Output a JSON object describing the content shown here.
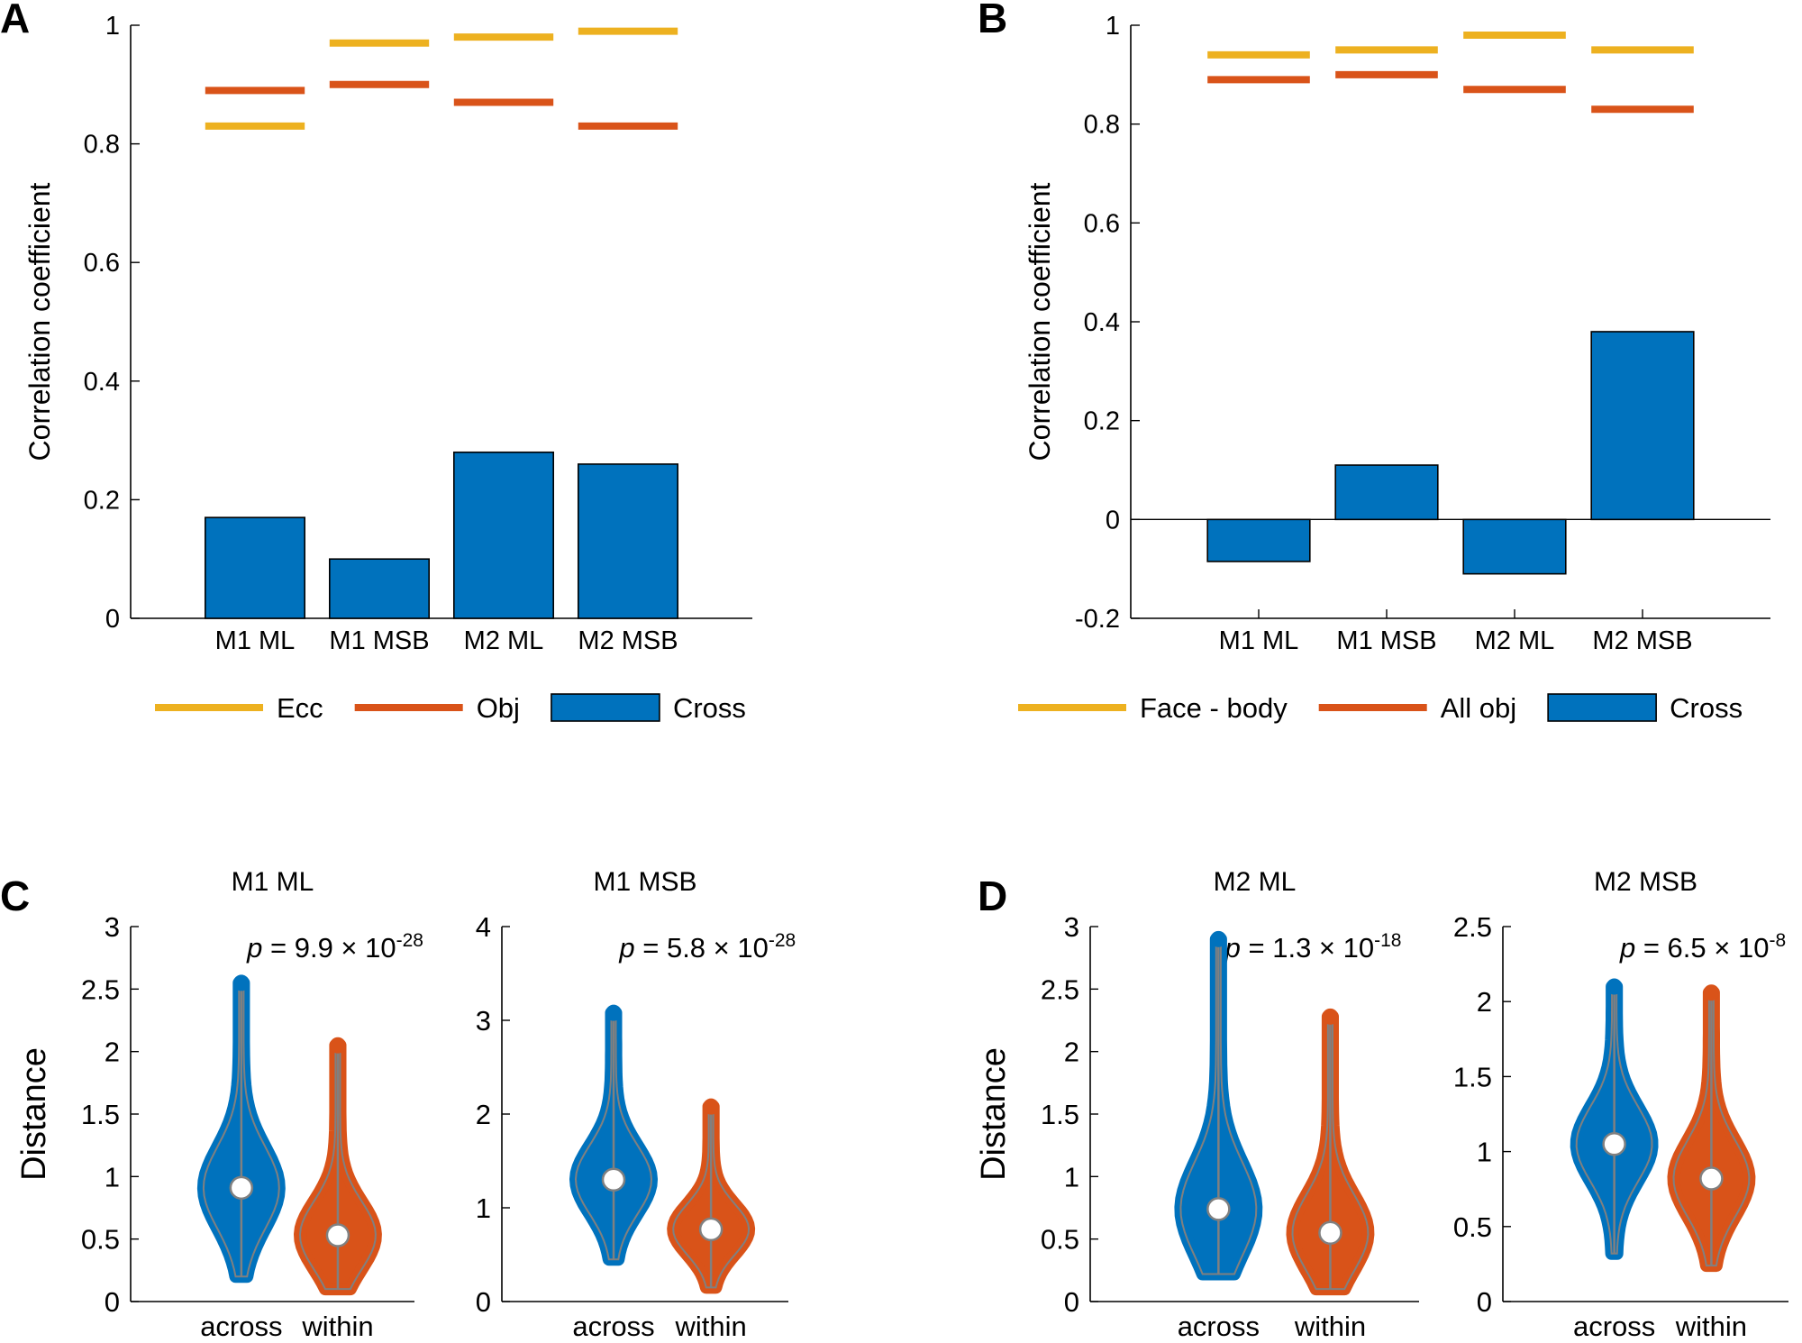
{
  "colors": {
    "ecc": "#EDB120",
    "obj": "#D95319",
    "cross": "#0072BD",
    "across": "#0072BD",
    "within": "#D95319",
    "violin_line": "#808080",
    "axis": "#000000"
  },
  "chart_data": [
    {
      "panel": "A",
      "type": "bar",
      "ylabel": "Correlation coefficient",
      "ylim": [
        0,
        1
      ],
      "yticks": [
        "0",
        "0.2",
        "0.4",
        "0.6",
        "0.8",
        "1"
      ],
      "categories": [
        "M1 ML",
        "M1 MSB",
        "M2 ML",
        "M2 MSB"
      ],
      "series": [
        {
          "name": "Cross",
          "type": "bar",
          "values": [
            0.17,
            0.1,
            0.28,
            0.26
          ]
        },
        {
          "name": "Ecc",
          "type": "line-marker",
          "values": [
            0.83,
            0.97,
            0.98,
            0.99
          ]
        },
        {
          "name": "Obj",
          "type": "line-marker",
          "values": [
            0.89,
            0.9,
            0.87,
            0.83
          ]
        }
      ],
      "legend": [
        "Ecc",
        "Obj",
        "Cross"
      ]
    },
    {
      "panel": "B",
      "type": "bar",
      "ylabel": "Correlation coefficient",
      "ylim": [
        -0.2,
        1
      ],
      "yticks": [
        "-0.2",
        "0",
        "0.2",
        "0.4",
        "0.6",
        "0.8",
        "1"
      ],
      "categories": [
        "M1 ML",
        "M1 MSB",
        "M2 ML",
        "M2 MSB"
      ],
      "series": [
        {
          "name": "Cross",
          "type": "bar",
          "values": [
            -0.085,
            0.11,
            -0.11,
            0.38
          ]
        },
        {
          "name": "Face - body",
          "type": "line-marker",
          "values": [
            0.94,
            0.95,
            0.98,
            0.95
          ]
        },
        {
          "name": "All obj",
          "type": "line-marker",
          "values": [
            0.89,
            0.9,
            0.87,
            0.83
          ]
        }
      ],
      "legend": [
        "Face - body",
        "All obj",
        "Cross"
      ]
    },
    {
      "panel": "C",
      "type": "violin",
      "title": "M1 ML",
      "ylabel": "Distance",
      "ylim": [
        0,
        3
      ],
      "yticks": [
        "0",
        "0.5",
        "1",
        "1.5",
        "2",
        "2.5",
        "3"
      ],
      "categories": [
        "across",
        "within"
      ],
      "pvalue": {
        "label": "p",
        "text": " = 9.9 × 10",
        "exp": "-28"
      },
      "groups": [
        {
          "name": "across",
          "median": 0.91,
          "min": 0.2,
          "max": 2.55
        },
        {
          "name": "within",
          "median": 0.53,
          "min": 0.1,
          "max": 2.05
        }
      ]
    },
    {
      "panel": "C",
      "type": "violin",
      "title": "M1 MSB",
      "ylabel": "",
      "ylim": [
        0,
        4
      ],
      "yticks": [
        "0",
        "1",
        "2",
        "3",
        "4"
      ],
      "categories": [
        "across",
        "within"
      ],
      "pvalue": {
        "label": "p",
        "text": " = 5.8 × 10",
        "exp": "-28"
      },
      "groups": [
        {
          "name": "across",
          "median": 1.3,
          "min": 0.45,
          "max": 3.08
        },
        {
          "name": "within",
          "median": 0.77,
          "min": 0.15,
          "max": 2.08
        }
      ]
    },
    {
      "panel": "D",
      "type": "violin",
      "title": "M2 ML",
      "ylabel": "Distance",
      "ylim": [
        0,
        3
      ],
      "yticks": [
        "0",
        "0.5",
        "1",
        "1.5",
        "2",
        "2.5",
        "3"
      ],
      "categories": [
        "across",
        "within"
      ],
      "pvalue": {
        "label": "p",
        "text": " = 1.3 × 10",
        "exp": "-18"
      },
      "groups": [
        {
          "name": "across",
          "median": 0.74,
          "min": 0.22,
          "max": 2.9
        },
        {
          "name": "within",
          "median": 0.55,
          "min": 0.1,
          "max": 2.28
        }
      ]
    },
    {
      "panel": "D",
      "type": "violin",
      "title": "M2 MSB",
      "ylabel": "",
      "ylim": [
        0,
        2.5
      ],
      "yticks": [
        "0",
        "0.5",
        "1",
        "1.5",
        "2",
        "2.5"
      ],
      "categories": [
        "across",
        "within"
      ],
      "pvalue": {
        "label": "p",
        "text": " = 6.5 × 10",
        "exp": "-8"
      },
      "groups": [
        {
          "name": "across",
          "median": 1.05,
          "min": 0.32,
          "max": 2.1
        },
        {
          "name": "within",
          "median": 0.82,
          "min": 0.24,
          "max": 2.06
        }
      ]
    }
  ]
}
